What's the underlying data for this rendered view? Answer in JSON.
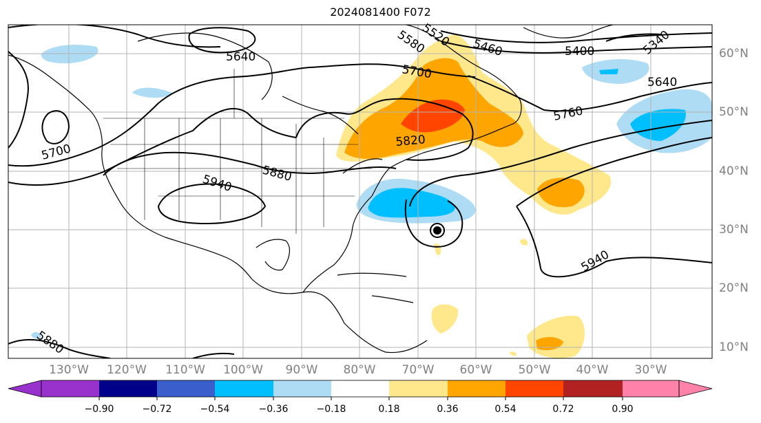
{
  "title": "2024081400 F072",
  "lon_labels": [
    {
      "id": "130w",
      "text": "130°W"
    },
    {
      "id": "120w",
      "text": "120°W"
    },
    {
      "id": "110w",
      "text": "110°W"
    },
    {
      "id": "100w",
      "text": "100°W"
    },
    {
      "id": "90w",
      "text": "90°W"
    },
    {
      "id": "80w",
      "text": "80°W"
    },
    {
      "id": "70w",
      "text": "70°W"
    },
    {
      "id": "60w",
      "text": "60°W"
    },
    {
      "id": "50w",
      "text": "50°W"
    },
    {
      "id": "40w",
      "text": "40°W"
    },
    {
      "id": "30w",
      "text": "30°W"
    }
  ],
  "lat_labels": [
    {
      "id": "60n",
      "text": "60°N"
    },
    {
      "id": "50n",
      "text": "50°N"
    },
    {
      "id": "40n",
      "text": "40°N"
    },
    {
      "id": "30n",
      "text": "30°N"
    },
    {
      "id": "20n",
      "text": "20°N"
    },
    {
      "id": "10n",
      "text": "10°N"
    }
  ],
  "contour_labels": [
    "5640",
    "5700",
    "5460",
    "5400",
    "5340",
    "5640",
    "5760",
    "5820",
    "5880",
    "5940",
    "5700",
    "5940",
    "5880",
    "5580",
    "5520"
  ],
  "colorbar": {
    "ticks": [
      "−0.90",
      "−0.72",
      "−0.54",
      "−0.36",
      "−0.18",
      "0.18",
      "0.36",
      "0.54",
      "0.72",
      "0.90"
    ],
    "colors": [
      "#9932cc",
      "#00008b",
      "#3a5fcd",
      "#00bfff",
      "#afdcf5",
      "#ffffff",
      "#ffe88c",
      "#ffa500",
      "#ff4500",
      "#b22222",
      "#ff82ab"
    ]
  }
}
